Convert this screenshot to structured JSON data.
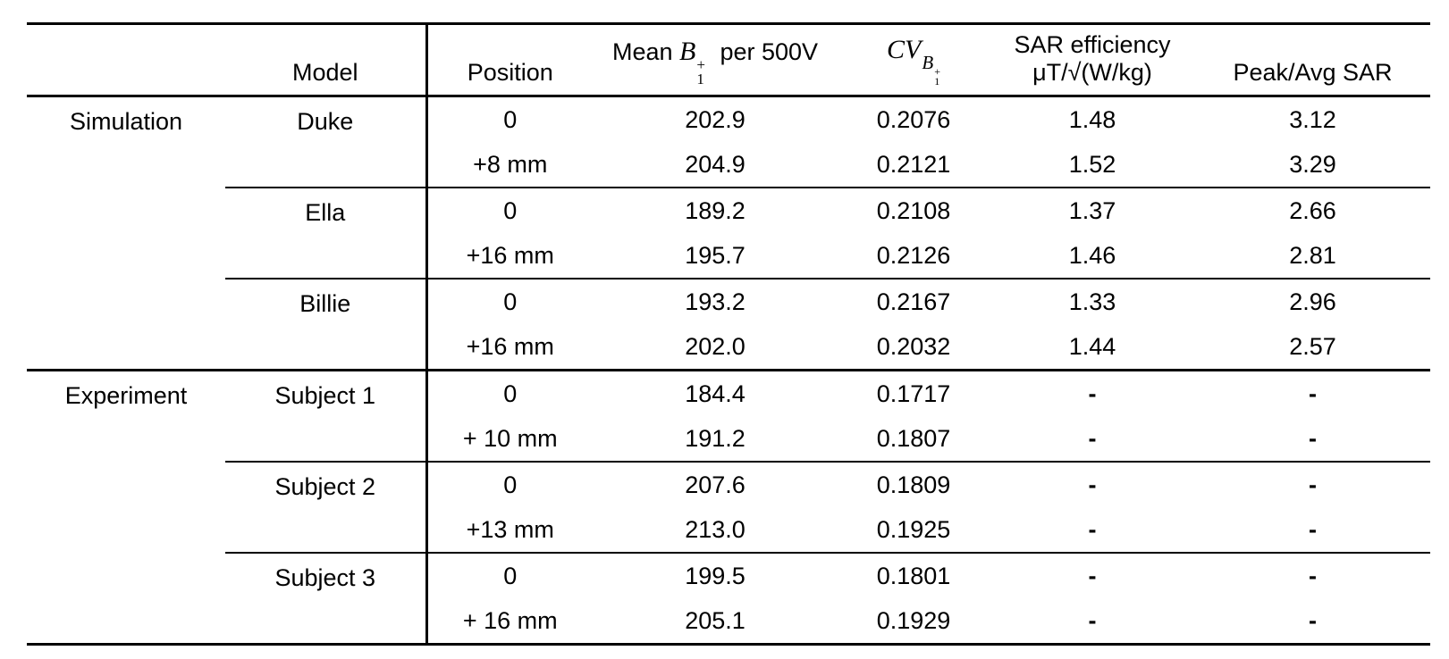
{
  "table": {
    "headers": {
      "model": "Model",
      "position": "Position",
      "mean_b1": {
        "prefix": "Mean",
        "symbol": "B",
        "sup": "+",
        "sub": "1",
        "suffix": "per 500V"
      },
      "cv": {
        "symbol": "CV",
        "sub_symbol": "B",
        "sub_sup": "+",
        "sub_sub": "1"
      },
      "sar_efficiency": {
        "line1": "SAR efficiency",
        "line2": "μT/√(W/kg)"
      },
      "peak_avg_sar": "Peak/Avg SAR"
    },
    "sections": [
      {
        "group": "Simulation",
        "models": [
          {
            "name": "Duke",
            "rows": [
              {
                "position": "0",
                "mean": "202.9",
                "cv": "0.2076",
                "sar_eff": "1.48",
                "peak_avg": "3.12"
              },
              {
                "position": "+8 mm",
                "mean": "204.9",
                "cv": "0.2121",
                "sar_eff": "1.52",
                "peak_avg": "3.29"
              }
            ]
          },
          {
            "name": "Ella",
            "rows": [
              {
                "position": "0",
                "mean": "189.2",
                "cv": "0.2108",
                "sar_eff": "1.37",
                "peak_avg": "2.66"
              },
              {
                "position": "+16 mm",
                "mean": "195.7",
                "cv": "0.2126",
                "sar_eff": "1.46",
                "peak_avg": "2.81"
              }
            ]
          },
          {
            "name": "Billie",
            "rows": [
              {
                "position": "0",
                "mean": "193.2",
                "cv": "0.2167",
                "sar_eff": "1.33",
                "peak_avg": "2.96"
              },
              {
                "position": "+16 mm",
                "mean": "202.0",
                "cv": "0.2032",
                "sar_eff": "1.44",
                "peak_avg": "2.57"
              }
            ]
          }
        ]
      },
      {
        "group": "Experiment",
        "models": [
          {
            "name": "Subject 1",
            "rows": [
              {
                "position": "0",
                "mean": "184.4",
                "cv": "0.1717",
                "sar_eff": "-",
                "peak_avg": "-"
              },
              {
                "position": "+ 10 mm",
                "mean": "191.2",
                "cv": "0.1807",
                "sar_eff": "-",
                "peak_avg": "-"
              }
            ]
          },
          {
            "name": "Subject 2",
            "rows": [
              {
                "position": "0",
                "mean": "207.6",
                "cv": "0.1809",
                "sar_eff": "-",
                "peak_avg": "-"
              },
              {
                "position": "+13 mm",
                "mean": "213.0",
                "cv": "0.1925",
                "sar_eff": "-",
                "peak_avg": "-"
              }
            ]
          },
          {
            "name": "Subject 3",
            "rows": [
              {
                "position": "0",
                "mean": "199.5",
                "cv": "0.1801",
                "sar_eff": "-",
                "peak_avg": "-"
              },
              {
                "position": "+ 16 mm",
                "mean": "205.1",
                "cv": "0.1929",
                "sar_eff": "-",
                "peak_avg": "-"
              }
            ]
          }
        ]
      }
    ]
  },
  "chart_data": {
    "type": "table",
    "columns": [
      "",
      "Model",
      "Position",
      "Mean B1+ per 500V",
      "CV_B1+",
      "SAR efficiency μT/√(W/kg)",
      "Peak/Avg SAR"
    ],
    "rows": [
      [
        "Simulation",
        "Duke",
        "0",
        "202.9",
        "0.2076",
        "1.48",
        "3.12"
      ],
      [
        "Simulation",
        "Duke",
        "+8 mm",
        "204.9",
        "0.2121",
        "1.52",
        "3.29"
      ],
      [
        "Simulation",
        "Ella",
        "0",
        "189.2",
        "0.2108",
        "1.37",
        "2.66"
      ],
      [
        "Simulation",
        "Ella",
        "+16 mm",
        "195.7",
        "0.2126",
        "1.46",
        "2.81"
      ],
      [
        "Simulation",
        "Billie",
        "0",
        "193.2",
        "0.2167",
        "1.33",
        "2.96"
      ],
      [
        "Simulation",
        "Billie",
        "+16 mm",
        "202.0",
        "0.2032",
        "1.44",
        "2.57"
      ],
      [
        "Experiment",
        "Subject 1",
        "0",
        "184.4",
        "0.1717",
        "-",
        "-"
      ],
      [
        "Experiment",
        "Subject 1",
        "+ 10 mm",
        "191.2",
        "0.1807",
        "-",
        "-"
      ],
      [
        "Experiment",
        "Subject 2",
        "0",
        "207.6",
        "0.1809",
        "-",
        "-"
      ],
      [
        "Experiment",
        "Subject 2",
        "+13 mm",
        "213.0",
        "0.1925",
        "-",
        "-"
      ],
      [
        "Experiment",
        "Subject 3",
        "0",
        "199.5",
        "0.1801",
        "-",
        "-"
      ],
      [
        "Experiment",
        "Subject 3",
        "+ 16 mm",
        "205.1",
        "0.1929",
        "-",
        "-"
      ]
    ]
  }
}
